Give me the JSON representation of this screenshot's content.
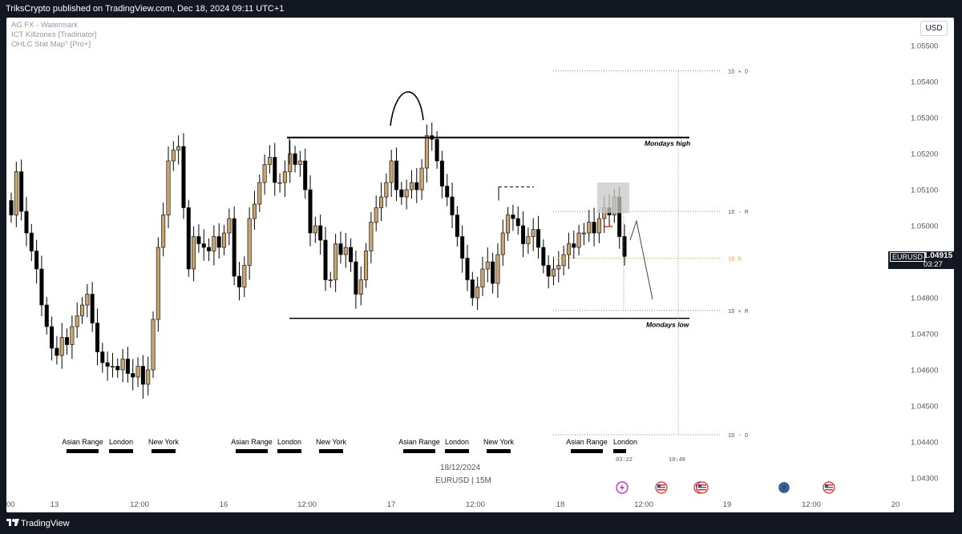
{
  "header": {
    "publisher_line": "TriksCrypto published on TradingView.com, Dec 18, 2024 09:11 UTC+1"
  },
  "indicators": [
    "AG FX - Watermark",
    "ICT Killzones [Tradinator]",
    "OHLC Stat Map° [Pro+]"
  ],
  "currency_button": "USD",
  "symbol_tag": {
    "symbol": "EURUSD",
    "price": "1.04915",
    "countdown": "03:27"
  },
  "date_label": "18/12/2024",
  "symbol_label": "EURUSD | 15M",
  "footer": {
    "brand": "TradingView"
  },
  "colors": {
    "candle": "#000000",
    "candle_body_up": "#c8a46e",
    "ref_line": "#000000",
    "dotted": "#888888",
    "open_line": "#f0a020",
    "highlight_box": "#c8c8c8",
    "price_tag_bg": "#131722"
  },
  "event_icons": [
    "lightning-icon",
    "us-flag-icon",
    "us-flag-icon",
    "us-flag-icon",
    "eu-flag-icon",
    "us-flag-icon"
  ],
  "chart_data": {
    "type": "candlestick",
    "price_axis": {
      "ticks": [
        "1.05500",
        "1.05400",
        "1.05300",
        "1.05200",
        "1.05100",
        "1.05000",
        "1.04900",
        "1.04800",
        "1.04700",
        "1.04600",
        "1.04500",
        "1.04400",
        "1.04300"
      ],
      "range": [
        1.0426,
        1.0556
      ]
    },
    "time_axis": {
      "ticks": [
        "00",
        "13",
        "12:00",
        "16",
        "12:00",
        "17",
        "12:00",
        "18",
        "12:00",
        "19",
        "12:00",
        "20"
      ]
    },
    "levels": [
      {
        "label": "Mondays high",
        "price": 1.05245
      },
      {
        "label": "Mondays low",
        "price": 1.04743
      }
    ],
    "stat_levels": [
      {
        "label": "1D + D",
        "price": 1.0543
      },
      {
        "label": "1D - M",
        "price": 1.0504
      },
      {
        "label": "1D O",
        "price": 1.0491
      },
      {
        "label": "1D + M",
        "price": 1.04765
      },
      {
        "label": "1D - D",
        "price": 1.0442
      }
    ],
    "stat_times": [
      "03:22",
      "10:48"
    ],
    "sessions": [
      {
        "day": "13",
        "labels": [
          "Asian Range",
          "London",
          "New York"
        ]
      },
      {
        "day": "16",
        "labels": [
          "Asian Range",
          "London",
          "New York"
        ]
      },
      {
        "day": "17",
        "labels": [
          "Asian Range",
          "London",
          "New York"
        ]
      },
      {
        "day": "18",
        "labels": [
          "Asian Range",
          "London"
        ]
      }
    ],
    "closes": [
      1.0503,
      1.0515,
      1.0504,
      1.0498,
      1.0493,
      1.0488,
      1.0478,
      1.0472,
      1.0466,
      1.0464,
      1.0469,
      1.0467,
      1.0472,
      1.0475,
      1.0478,
      1.0481,
      1.0473,
      1.0465,
      1.0462,
      1.0461,
      1.0461,
      1.046,
      1.0463,
      1.0459,
      1.0458,
      1.0461,
      1.0456,
      1.046,
      1.0474,
      1.0494,
      1.0503,
      1.0518,
      1.0521,
      1.0522,
      1.0505,
      1.0488,
      1.0497,
      1.0495,
      1.0494,
      1.0493,
      1.0497,
      1.0494,
      1.0498,
      1.0502,
      1.0486,
      1.0483,
      1.0489,
      1.0502,
      1.0506,
      1.0512,
      1.0517,
      1.0519,
      1.0512,
      1.0512,
      1.0515,
      1.052,
      1.0517,
      1.0518,
      1.051,
      1.0498,
      1.05,
      1.0496,
      1.0485,
      1.0485,
      1.0495,
      1.0492,
      1.0494,
      1.049,
      1.0481,
      1.0485,
      1.0493,
      1.0501,
      1.0505,
      1.0508,
      1.0512,
      1.0518,
      1.051,
      1.0508,
      1.051,
      1.0512,
      1.051,
      1.0516,
      1.0525,
      1.0524,
      1.0518,
      1.0511,
      1.0508,
      1.0503,
      1.0497,
      1.0491,
      1.0485,
      1.048,
      1.0483,
      1.0488,
      1.049,
      1.0484,
      1.0492,
      1.0498,
      1.0503,
      1.0502,
      1.05,
      1.0495,
      1.0497,
      1.0499,
      1.0494,
      1.0489,
      1.0486,
      1.0488,
      1.0489,
      1.0492,
      1.0495,
      1.0494,
      1.0498,
      1.0498,
      1.0501,
      1.0498,
      1.0502,
      1.0505,
      1.0503,
      1.0508,
      1.0497,
      1.04915
    ]
  },
  "annotations": {
    "mondays_high_label": "Mondays high",
    "mondays_low_label": "Mondays low"
  }
}
